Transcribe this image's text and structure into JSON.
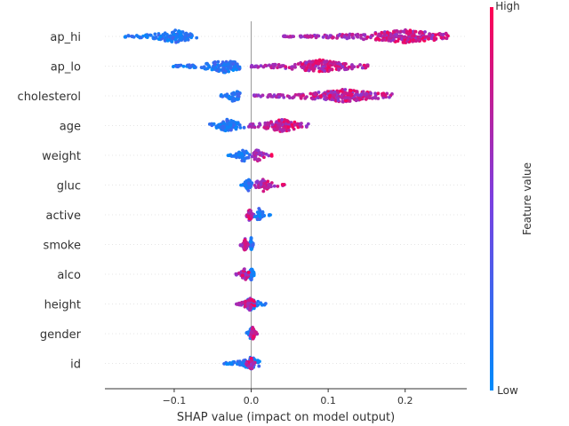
{
  "chart_data": {
    "type": "scatter",
    "subtype": "beeswarm",
    "xlabel": "SHAP value (impact on model output)",
    "xlim": [
      -0.19,
      0.28
    ],
    "xticks": [
      -0.1,
      0.0,
      0.1,
      0.2
    ],
    "xtick_labels": [
      "−0.1",
      "0.0",
      "0.1",
      "0.2"
    ],
    "zero_line": true,
    "colorbar": {
      "label": "Feature value",
      "high_label": "High",
      "low_label": "Low",
      "low_color": "#008bfb",
      "mid_color": "#7c3fe0",
      "high_color": "#ff0052"
    },
    "features": [
      {
        "name": "ap_hi",
        "low_range": [
          -0.165,
          -0.07
        ],
        "low_peak": -0.1,
        "high_range": [
          0.042,
          0.258
        ],
        "high_peak": 0.2,
        "gap": true
      },
      {
        "name": "ap_lo",
        "low_range": [
          -0.105,
          -0.015
        ],
        "low_peak": -0.035,
        "high_range": [
          0.0,
          0.152
        ],
        "high_peak": 0.09,
        "gap": false
      },
      {
        "name": "cholesterol",
        "low_range": [
          -0.04,
          -0.012
        ],
        "low_peak": -0.022,
        "high_range": [
          0.003,
          0.183
        ],
        "high_peak": 0.12,
        "gap": true
      },
      {
        "name": "age",
        "low_range": [
          -0.055,
          0.005
        ],
        "low_peak": -0.03,
        "high_range": [
          -0.01,
          0.075
        ],
        "high_peak": 0.04,
        "gap": false
      },
      {
        "name": "weight",
        "low_range": [
          -0.03,
          0.0
        ],
        "low_peak": -0.01,
        "high_range": [
          0.0,
          0.028
        ],
        "high_peak": 0.008,
        "gap": false
      },
      {
        "name": "gluc",
        "low_range": [
          -0.015,
          0.002
        ],
        "low_peak": -0.004,
        "high_range": [
          0.004,
          0.044
        ],
        "high_peak": 0.015,
        "gap": false
      },
      {
        "name": "active",
        "low_range": [
          0.003,
          0.025
        ],
        "low_peak": 0.01,
        "high_range": [
          -0.008,
          0.002
        ],
        "high_peak": -0.002,
        "gap": false
      },
      {
        "name": "smoke",
        "low_range": [
          -0.003,
          0.003
        ],
        "low_peak": 0.0,
        "high_range": [
          -0.014,
          -0.004
        ],
        "high_peak": -0.008,
        "gap": false
      },
      {
        "name": "alco",
        "low_range": [
          -0.006,
          0.006
        ],
        "low_peak": 0.0,
        "high_range": [
          -0.02,
          -0.003
        ],
        "high_peak": -0.008,
        "gap": false
      },
      {
        "name": "height",
        "low_range": [
          -0.01,
          0.02
        ],
        "low_peak": 0.0,
        "high_range": [
          -0.02,
          0.005
        ],
        "high_peak": -0.002,
        "gap": false
      },
      {
        "name": "gender",
        "low_range": [
          -0.006,
          0.005
        ],
        "low_peak": 0.0,
        "high_range": [
          -0.002,
          0.008
        ],
        "high_peak": 0.002,
        "gap": false
      },
      {
        "name": "id",
        "low_range": [
          -0.037,
          0.012
        ],
        "low_peak": 0.0,
        "high_range": [
          -0.01,
          0.005
        ],
        "high_peak": 0.0,
        "gap": false
      }
    ]
  }
}
